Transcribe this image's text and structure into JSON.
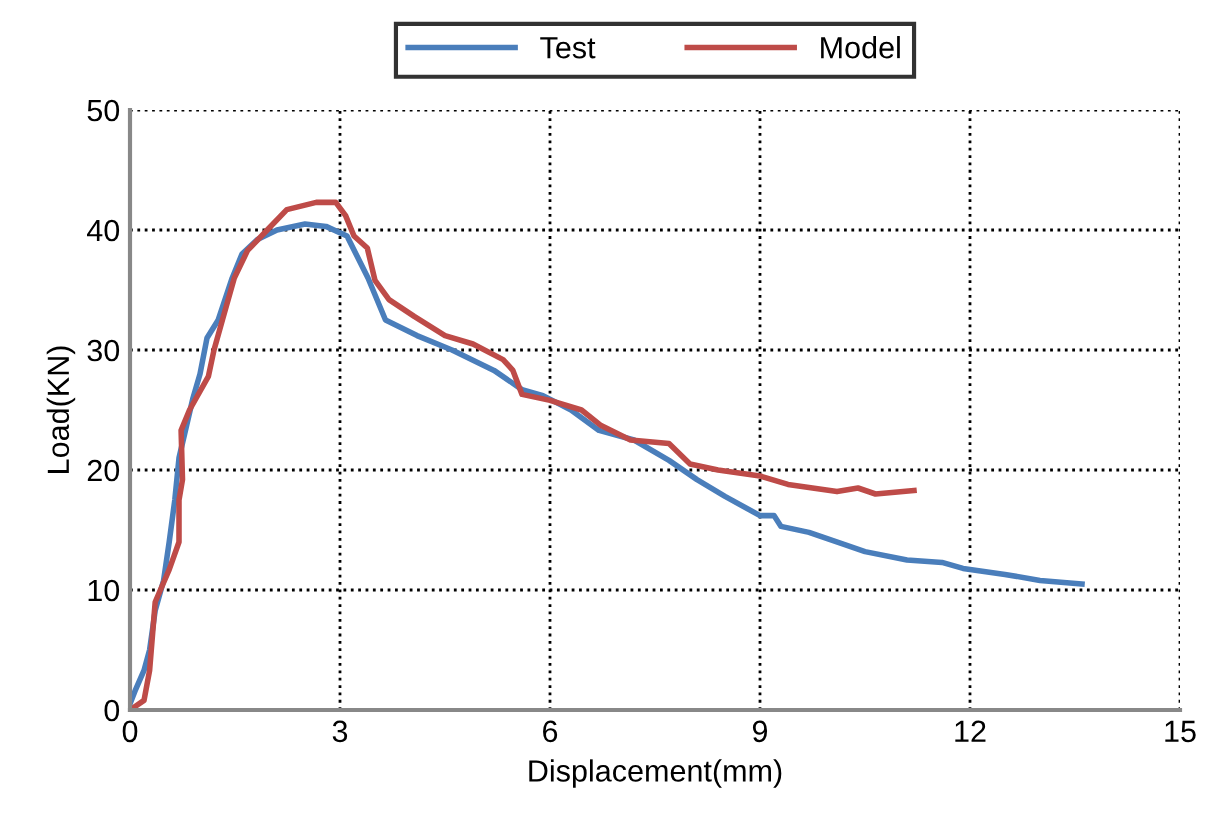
{
  "chart_data": {
    "type": "line",
    "xlabel": "Displacement(mm)",
    "ylabel": "Load(KN)",
    "xlim": [
      0,
      15
    ],
    "ylim": [
      0,
      50
    ],
    "xticks": [
      0,
      3,
      6,
      9,
      12,
      15
    ],
    "yticks": [
      0,
      10,
      20,
      30,
      40,
      50
    ],
    "grid": true,
    "legend": "top",
    "marker": "none",
    "line_style": "solid",
    "series": [
      {
        "name": "Test",
        "color": "#4a7ebb",
        "x": [
          0,
          0.08,
          0.2,
          0.28,
          0.36,
          0.48,
          0.56,
          0.64,
          0.7,
          0.78,
          0.9,
          1.0,
          1.1,
          1.26,
          1.46,
          1.6,
          1.82,
          2.1,
          2.5,
          2.8,
          3.1,
          3.4,
          3.65,
          4.1,
          4.6,
          5.2,
          5.6,
          5.9,
          6.3,
          6.7,
          7.2,
          7.7,
          8.1,
          8.5,
          9.0,
          9.2,
          9.3,
          9.7,
          10.2,
          10.5,
          11.1,
          11.6,
          11.9,
          12.5,
          13.0,
          13.6
        ],
        "values": [
          0.5,
          1.7,
          3.3,
          5,
          8.3,
          10.8,
          14,
          17.5,
          21,
          23,
          26,
          28,
          31,
          32.5,
          36,
          38,
          39.2,
          40,
          40.5,
          40.3,
          39.5,
          36,
          32.5,
          31.2,
          30,
          28.3,
          26.7,
          26.2,
          25,
          23.3,
          22.5,
          20.8,
          19.2,
          17.8,
          16.2,
          16.2,
          15.3,
          14.8,
          13.8,
          13.2,
          12.5,
          12.3,
          11.8,
          11.3,
          10.8,
          10.5
        ]
      },
      {
        "name": "Model",
        "color": "#be4b48",
        "x": [
          0,
          0.2,
          0.28,
          0.36,
          0.56,
          0.7,
          0.7,
          0.75,
          0.73,
          0.85,
          1.12,
          1.2,
          1.32,
          1.49,
          1.68,
          1.96,
          2.24,
          2.66,
          2.94,
          3.08,
          3.2,
          3.39,
          3.5,
          3.7,
          4.06,
          4.5,
          4.9,
          5.33,
          5.47,
          5.6,
          6.0,
          6.45,
          6.73,
          7.15,
          7.7,
          8.0,
          8.4,
          9.0,
          9.4,
          10.1,
          10.4,
          10.65,
          11.2
        ],
        "values": [
          0,
          0.8,
          3.3,
          9,
          11.7,
          14,
          17.5,
          19.2,
          23.3,
          25,
          27.8,
          30,
          32.5,
          36,
          38.3,
          40,
          41.7,
          42.3,
          42.3,
          41.2,
          39.5,
          38.5,
          35.8,
          34.2,
          32.8,
          31.2,
          30.5,
          29.2,
          28.3,
          26.3,
          25.8,
          25,
          23.7,
          22.5,
          22.2,
          20.5,
          20,
          19.5,
          18.8,
          18.2,
          18.5,
          18,
          18.3
        ]
      }
    ]
  }
}
